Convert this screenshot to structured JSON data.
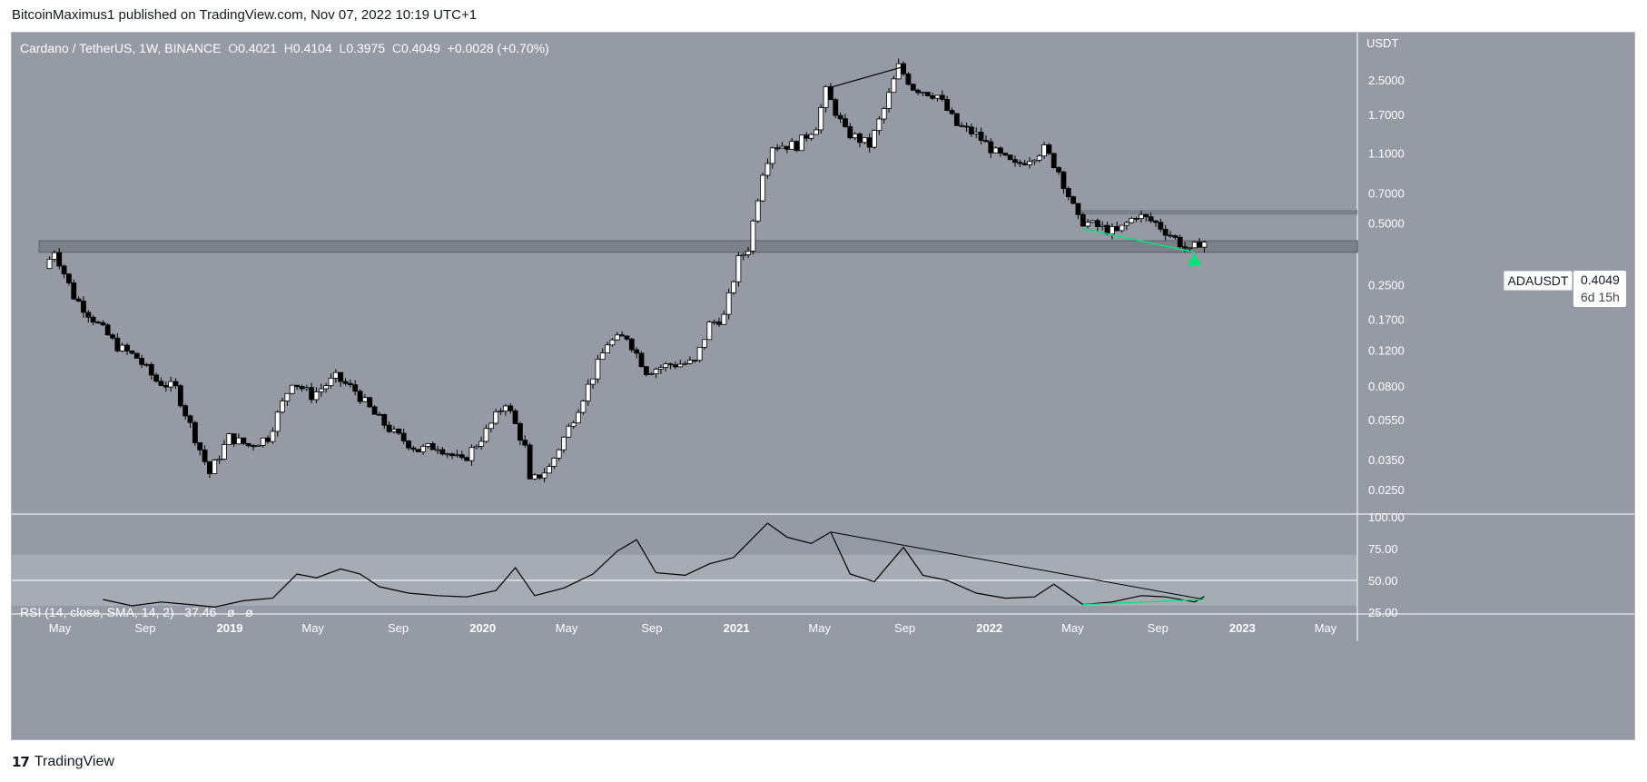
{
  "header": {
    "attribution": "BitcoinMaximus1 published on TradingView.com, Nov 07, 2022 10:19 UTC+1"
  },
  "legend": {
    "symbol": "Cardano / TetherUS, 1W, BINANCE",
    "o_label": "O",
    "o": "0.4021",
    "h_label": "H",
    "h": "0.4104",
    "l_label": "L",
    "l": "0.3975",
    "c_label": "C",
    "c": "0.4049",
    "change": "+0.0028 (+0.70%)"
  },
  "rsi_legend": {
    "label": "RSI (14, close, SMA, 14, 2)",
    "value": "37.46",
    "extra1": "ø",
    "extra2": "ø"
  },
  "price_tag": {
    "symbol": "ADAUSDT",
    "value": "0.4049",
    "countdown": "6d 15h"
  },
  "footer": {
    "logo_text": "TradingView"
  },
  "colors": {
    "background": "#959aa4",
    "candle_up": "#ffffff",
    "candle_down": "#000000",
    "support_zone": "#7c808a",
    "trendline": "#000000",
    "divergence_line": "#00e676",
    "signal_arrow": "#00e676"
  },
  "chart_data": {
    "type": "candlestick",
    "title": "Cardano / TetherUS, 1W, BINANCE",
    "y_axis_unit": "USDT",
    "y_scale": "log",
    "y_ticks": [
      2.5,
      1.7,
      1.1,
      0.7,
      0.5,
      0.25,
      0.17,
      0.12,
      0.08,
      0.055,
      0.035,
      0.025
    ],
    "y_tick_labels": [
      "2.5000",
      "1.7000",
      "1.1000",
      "0.7000",
      "0.5000",
      "0.2500",
      "0.1700",
      "0.1200",
      "0.0800",
      "0.0550",
      "0.0350",
      "0.0250"
    ],
    "x_ticks": [
      "2018-05",
      "2018-09",
      "2019-01",
      "2019-05",
      "2019-09",
      "2020-01",
      "2020-05",
      "2020-09",
      "2021-01",
      "2021-05",
      "2021-09",
      "2022-01",
      "2022-05",
      "2022-09",
      "2023-01",
      "2023-05"
    ],
    "x_tick_labels": [
      "May",
      "Sep",
      "2019",
      "May",
      "Sep",
      "2020",
      "May",
      "Sep",
      "2021",
      "May",
      "Sep",
      "2022",
      "May",
      "Sep",
      "2023",
      "May"
    ],
    "price_path": [
      [
        "2018-04-16",
        0.3
      ],
      [
        "2018-04-30",
        0.37
      ],
      [
        "2018-05-28",
        0.22
      ],
      [
        "2018-07-02",
        0.16
      ],
      [
        "2018-07-30",
        0.125
      ],
      [
        "2018-08-27",
        0.11
      ],
      [
        "2018-09-24",
        0.085
      ],
      [
        "2018-10-22",
        0.078
      ],
      [
        "2018-11-19",
        0.045
      ],
      [
        "2018-12-10",
        0.03
      ],
      [
        "2019-01-07",
        0.045
      ],
      [
        "2019-02-04",
        0.041
      ],
      [
        "2019-03-04",
        0.045
      ],
      [
        "2019-04-08",
        0.085
      ],
      [
        "2019-05-06",
        0.072
      ],
      [
        "2019-06-10",
        0.088
      ],
      [
        "2019-07-08",
        0.076
      ],
      [
        "2019-08-05",
        0.058
      ],
      [
        "2019-09-02",
        0.047
      ],
      [
        "2019-10-07",
        0.039
      ],
      [
        "2019-11-04",
        0.041
      ],
      [
        "2019-12-09",
        0.034
      ],
      [
        "2020-01-13",
        0.048
      ],
      [
        "2020-02-10",
        0.067
      ],
      [
        "2020-03-09",
        0.04
      ],
      [
        "2020-03-16",
        0.027
      ],
      [
        "2020-04-13",
        0.032
      ],
      [
        "2020-05-11",
        0.05
      ],
      [
        "2020-06-08",
        0.08
      ],
      [
        "2020-07-06",
        0.13
      ],
      [
        "2020-08-03",
        0.14
      ],
      [
        "2020-08-31",
        0.095
      ],
      [
        "2020-10-05",
        0.102
      ],
      [
        "2020-11-09",
        0.104
      ],
      [
        "2020-11-30",
        0.16
      ],
      [
        "2020-12-21",
        0.175
      ],
      [
        "2021-01-11",
        0.33
      ],
      [
        "2021-01-25",
        0.38
      ],
      [
        "2021-02-15",
        0.9
      ],
      [
        "2021-03-01",
        1.2
      ],
      [
        "2021-04-05",
        1.2
      ],
      [
        "2021-05-03",
        1.5
      ],
      [
        "2021-05-17",
        2.2
      ],
      [
        "2021-06-14",
        1.4
      ],
      [
        "2021-07-19",
        1.2
      ],
      [
        "2021-08-09",
        1.8
      ],
      [
        "2021-08-30",
        2.9
      ],
      [
        "2021-09-20",
        2.3
      ],
      [
        "2021-10-25",
        2.1
      ],
      [
        "2021-11-22",
        1.5
      ],
      [
        "2021-12-20",
        1.35
      ],
      [
        "2022-01-17",
        1.1
      ],
      [
        "2022-02-14",
        0.95
      ],
      [
        "2022-03-28",
        1.15
      ],
      [
        "2022-04-18",
        0.9
      ],
      [
        "2022-05-16",
        0.52
      ],
      [
        "2022-06-13",
        0.48
      ],
      [
        "2022-07-11",
        0.45
      ],
      [
        "2022-08-08",
        0.55
      ],
      [
        "2022-09-05",
        0.5
      ],
      [
        "2022-10-03",
        0.42
      ],
      [
        "2022-10-24",
        0.36
      ],
      [
        "2022-11-07",
        0.4049
      ]
    ],
    "support_zone": [
      0.36,
      0.41
    ],
    "resistance_zone": [
      0.55,
      0.58
    ],
    "trendline_top": [
      [
        "2021-05-17",
        2.3
      ],
      [
        "2021-08-30",
        2.9
      ]
    ],
    "divergence_line_price": [
      [
        "2022-05-16",
        0.47
      ],
      [
        "2022-10-24",
        0.36
      ]
    ],
    "signal_arrow": [
      "2022-10-24",
      0.33
    ],
    "rsi": {
      "label": "RSI (14, close, SMA, 14, 2)",
      "y_ticks": [
        100,
        75,
        50,
        25
      ],
      "y_tick_labels": [
        "100.00",
        "75.00",
        "50.00",
        "25.00"
      ],
      "overbought": 70,
      "oversold": 30,
      "midline": 50,
      "path": [
        [
          "2018-07-02",
          35
        ],
        [
          "2018-08-13",
          30
        ],
        [
          "2018-09-24",
          33
        ],
        [
          "2018-11-05",
          31
        ],
        [
          "2018-12-10",
          29
        ],
        [
          "2019-01-21",
          34
        ],
        [
          "2019-03-04",
          36
        ],
        [
          "2019-04-08",
          55
        ],
        [
          "2019-05-06",
          52
        ],
        [
          "2019-06-10",
          59
        ],
        [
          "2019-07-08",
          55
        ],
        [
          "2019-08-05",
          45
        ],
        [
          "2019-09-16",
          40
        ],
        [
          "2019-10-28",
          38
        ],
        [
          "2019-12-09",
          37
        ],
        [
          "2020-01-20",
          42
        ],
        [
          "2020-02-17",
          60
        ],
        [
          "2020-03-16",
          38
        ],
        [
          "2020-04-27",
          44
        ],
        [
          "2020-06-08",
          55
        ],
        [
          "2020-07-13",
          73
        ],
        [
          "2020-08-10",
          82
        ],
        [
          "2020-09-07",
          56
        ],
        [
          "2020-10-19",
          54
        ],
        [
          "2020-11-23",
          63
        ],
        [
          "2020-12-28",
          68
        ],
        [
          "2021-02-15",
          95
        ],
        [
          "2021-03-15",
          84
        ],
        [
          "2021-04-19",
          79
        ],
        [
          "2021-05-17",
          88
        ],
        [
          "2021-06-14",
          55
        ],
        [
          "2021-07-19",
          49
        ],
        [
          "2021-08-30",
          76
        ],
        [
          "2021-09-27",
          54
        ],
        [
          "2021-11-01",
          50
        ],
        [
          "2021-12-13",
          40
        ],
        [
          "2022-01-24",
          36
        ],
        [
          "2022-03-07",
          37
        ],
        [
          "2022-04-04",
          47
        ],
        [
          "2022-05-16",
          31
        ],
        [
          "2022-06-27",
          33
        ],
        [
          "2022-08-08",
          38
        ],
        [
          "2022-09-12",
          37
        ],
        [
          "2022-10-24",
          33
        ],
        [
          "2022-11-07",
          37.46
        ]
      ],
      "trendline": [
        [
          "2021-05-17",
          88
        ],
        [
          "2022-11-07",
          35
        ]
      ],
      "divergence_line": [
        [
          "2022-05-16",
          31
        ],
        [
          "2022-11-07",
          35
        ]
      ]
    }
  }
}
